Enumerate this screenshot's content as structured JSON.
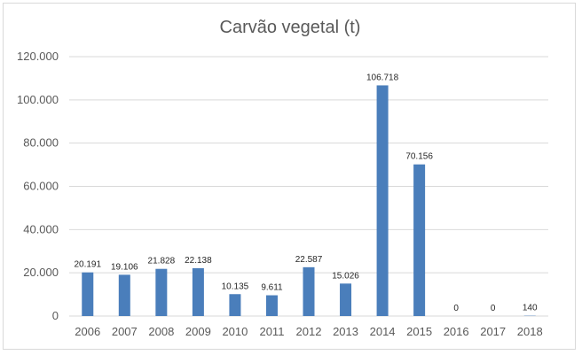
{
  "chart_data": {
    "type": "bar",
    "title": "Carvão vegetal (t)",
    "categories": [
      "2006",
      "2007",
      "2008",
      "2009",
      "2010",
      "2011",
      "2012",
      "2013",
      "2014",
      "2015",
      "2016",
      "2017",
      "2018"
    ],
    "values": [
      20191,
      19106,
      21828,
      22138,
      10135,
      9611,
      22587,
      15026,
      106718,
      70156,
      0,
      0,
      140
    ],
    "data_labels": [
      "20.191",
      "19.106",
      "21.828",
      "22.138",
      "10.135",
      "9.611",
      "22.587",
      "15.026",
      "106.718",
      "70.156",
      "0",
      "0",
      "140"
    ],
    "ylim": [
      0,
      120000
    ],
    "yticks": [
      0,
      20000,
      40000,
      60000,
      80000,
      100000,
      120000
    ],
    "ytick_labels": [
      "0",
      "20.000",
      "40.000",
      "60.000",
      "80.000",
      "100.000",
      "120.000"
    ],
    "grid": true,
    "bar_color": "#4a7ebb",
    "grid_color": "#d9d9d9"
  }
}
